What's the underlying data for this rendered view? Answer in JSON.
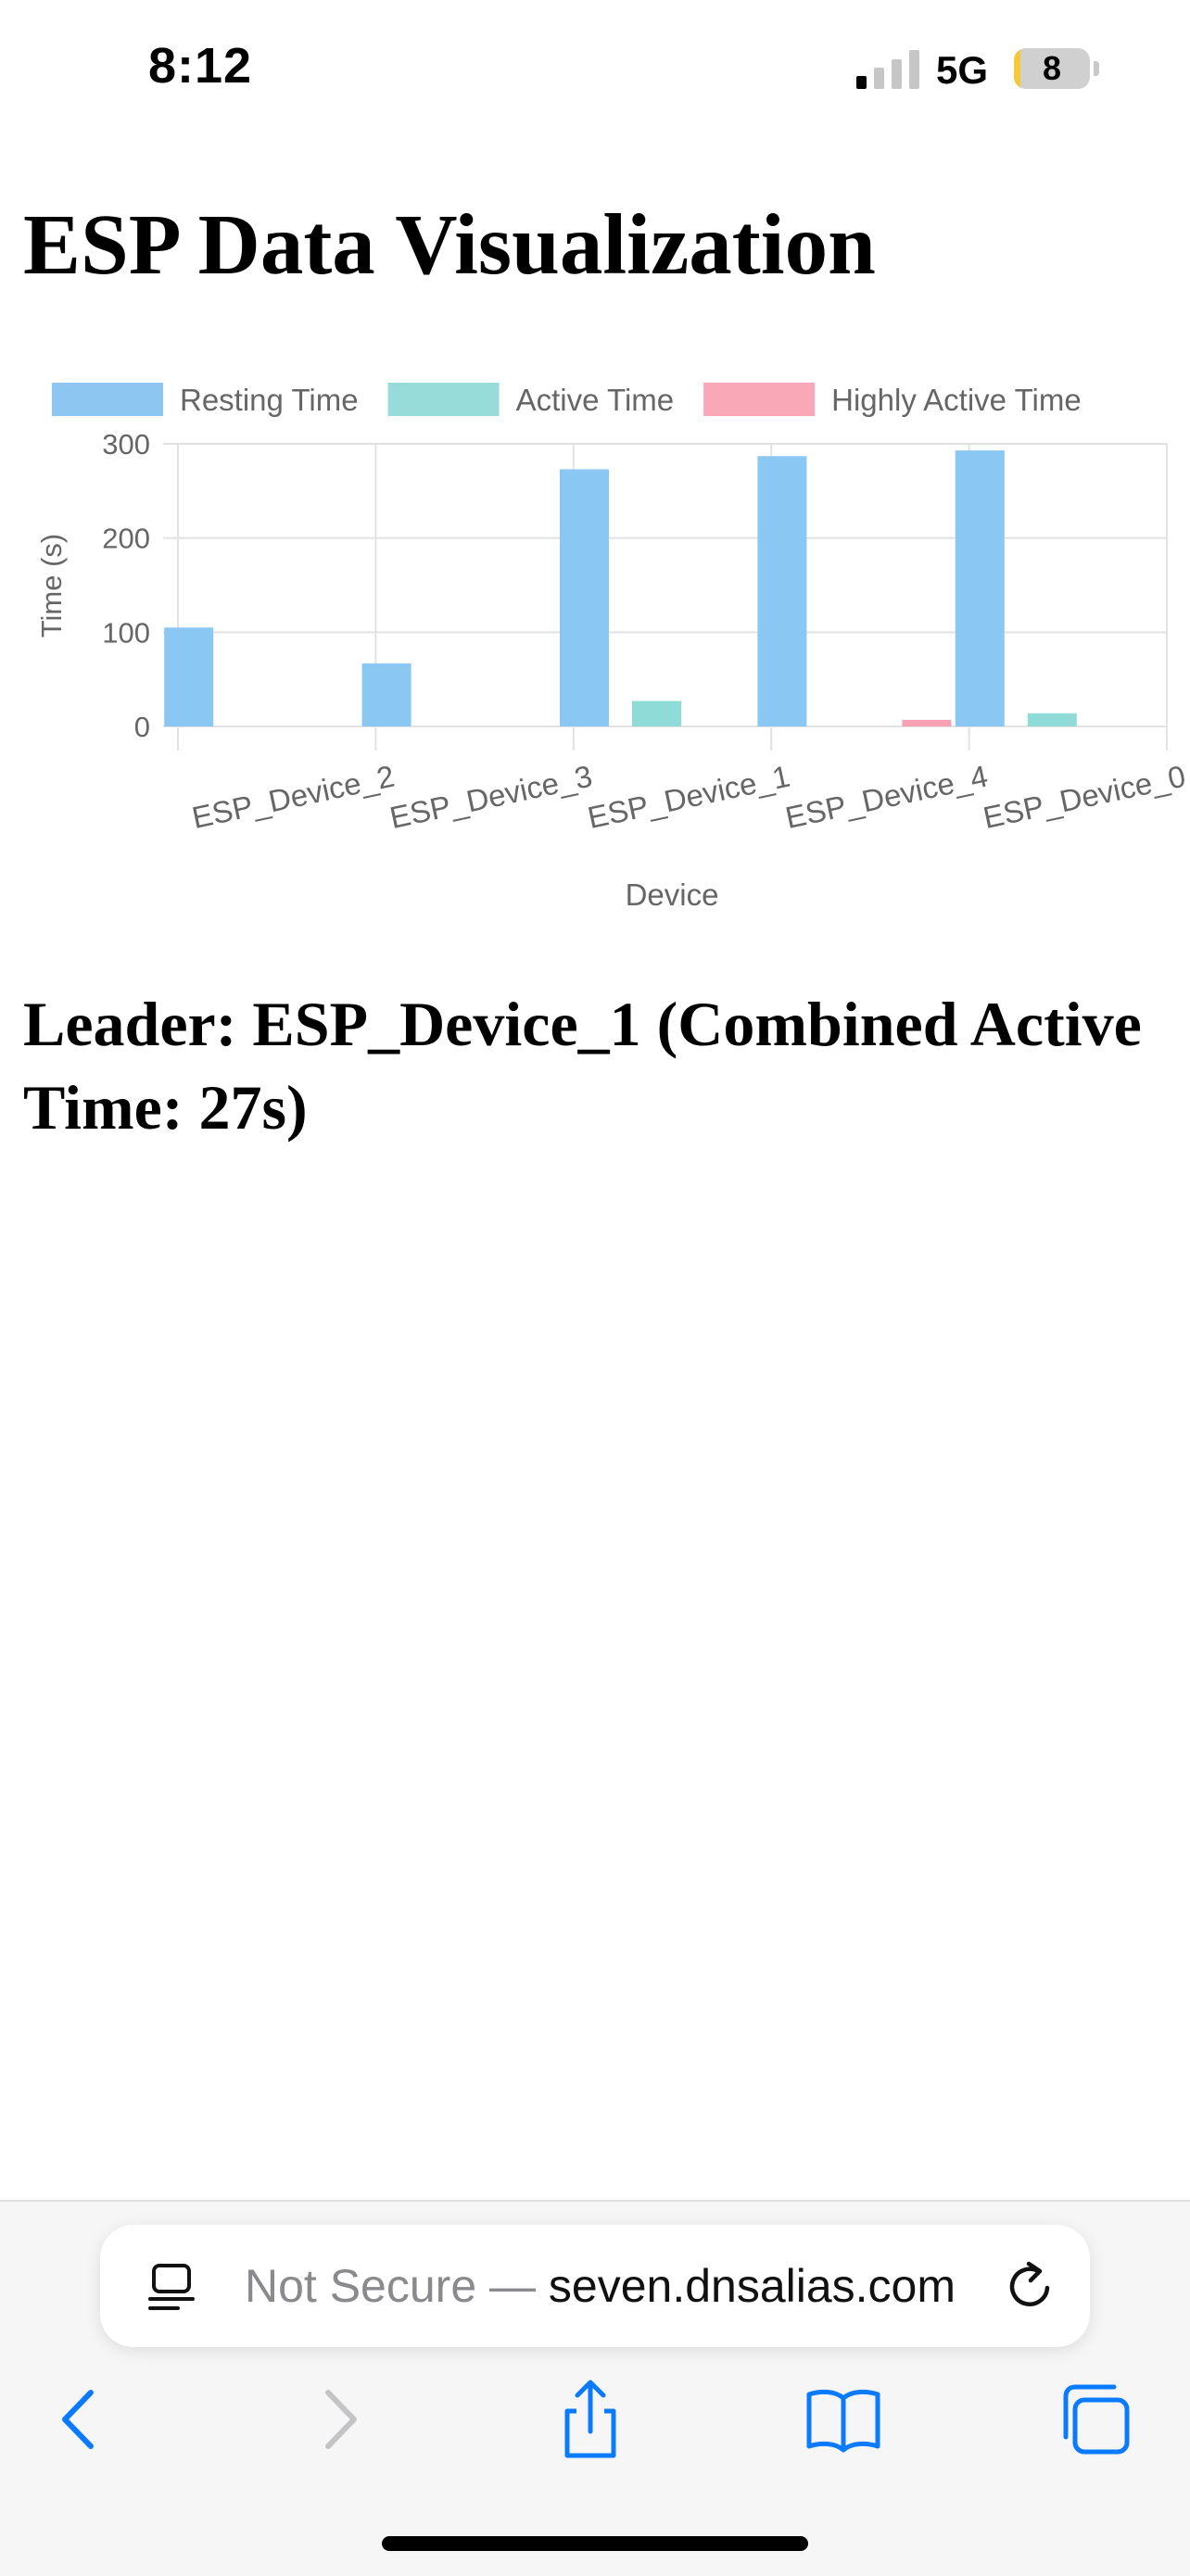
{
  "status_bar": {
    "time": "8:12",
    "network": "5G",
    "battery_level": "8",
    "battery_fraction": 0.08,
    "signal_bars_active": 1,
    "signal_bars_total": 4
  },
  "page": {
    "title": "ESP Data Visualization",
    "leader_text": "Leader: ESP_Device_1 (Combined Active Time: 27s)"
  },
  "chart_data": {
    "type": "bar",
    "categories": [
      "ESP_Device_2",
      "ESP_Device_3",
      "ESP_Device_1",
      "ESP_Device_4",
      "ESP_Device_0"
    ],
    "series": [
      {
        "name": "Resting Time",
        "values": [
          105,
          67,
          273,
          287,
          293
        ],
        "color": "#8ac7f2",
        "legend_color": "#8dc6f1"
      },
      {
        "name": "Active Time",
        "values": [
          0,
          0,
          27,
          0,
          14
        ],
        "color": "#8fdbd7",
        "legend_color": "#98dcd9"
      },
      {
        "name": "Highly Active Time",
        "values": [
          0,
          0,
          0,
          7,
          0
        ],
        "color": "#f7a2b4",
        "legend_color": "#f9a8b8"
      }
    ],
    "xlabel": "Device",
    "ylabel": "Time (s)",
    "ylim": [
      0,
      300
    ],
    "yticks": [
      0,
      100,
      200,
      300
    ],
    "grid": true,
    "legend_position": "top"
  },
  "browser": {
    "url_prefix": "Not Secure — ",
    "url_host": "seven.dnsalias.com",
    "icons": {
      "reader": "page-menu-icon",
      "reload": "reload-icon",
      "back": "chevron-left-icon",
      "forward": "chevron-right-icon",
      "share": "share-icon",
      "bookmarks": "book-icon",
      "tabs": "tabs-icon"
    },
    "accent_color": "#0a7aff",
    "disabled_color": "#c4c4c6"
  }
}
